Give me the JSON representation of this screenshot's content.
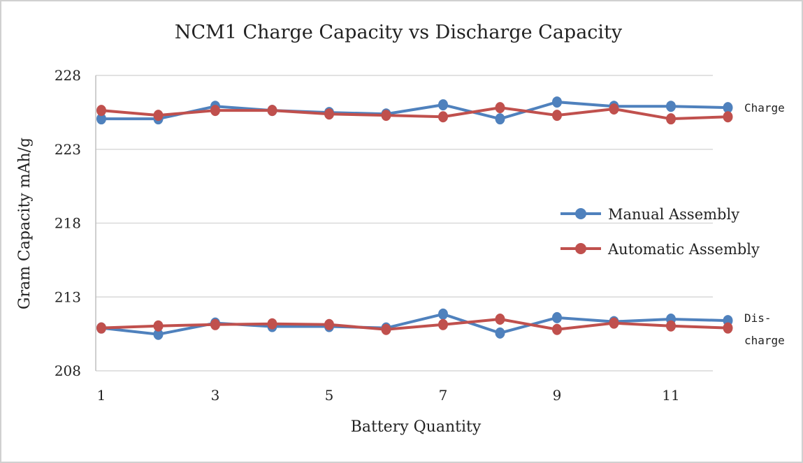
{
  "chart_data": {
    "type": "line",
    "title": "NCM1 Charge Capacity vs Discharge Capacity",
    "xlabel": "Battery Quantity",
    "ylabel": "Gram Capacity mAh/g",
    "x": [
      1,
      2,
      3,
      4,
      5,
      6,
      7,
      8,
      9,
      10,
      11,
      12
    ],
    "x_ticks": [
      "1",
      "3",
      "5",
      "7",
      "9",
      "11"
    ],
    "y_ticks": [
      "208",
      "213",
      "218",
      "223",
      "228"
    ],
    "ylim": [
      208,
      228
    ],
    "grid": true,
    "legend_position": "right",
    "annotations": {
      "charge": "Charge",
      "discharge_1": "Dis-",
      "discharge_2": "charge"
    },
    "series": [
      {
        "name": "Manual Assembly",
        "color": "#4f81bd",
        "charge": [
          225.06,
          225.06,
          225.91,
          225.63,
          225.49,
          225.39,
          226.01,
          225.06,
          226.2,
          225.91,
          225.91,
          225.82
        ],
        "discharge": [
          210.9,
          210.47,
          211.23,
          211.0,
          211.0,
          210.9,
          211.84,
          210.56,
          211.6,
          211.33,
          211.5,
          211.4
        ]
      },
      {
        "name": "Automatic Assembly",
        "color": "#c0504d",
        "charge": [
          225.63,
          225.3,
          225.63,
          225.63,
          225.39,
          225.3,
          225.2,
          225.82,
          225.3,
          225.73,
          225.06,
          225.2
        ],
        "discharge": [
          210.9,
          211.04,
          211.13,
          211.18,
          211.13,
          210.8,
          211.13,
          211.5,
          210.8,
          211.23,
          211.04,
          210.9
        ]
      }
    ]
  }
}
